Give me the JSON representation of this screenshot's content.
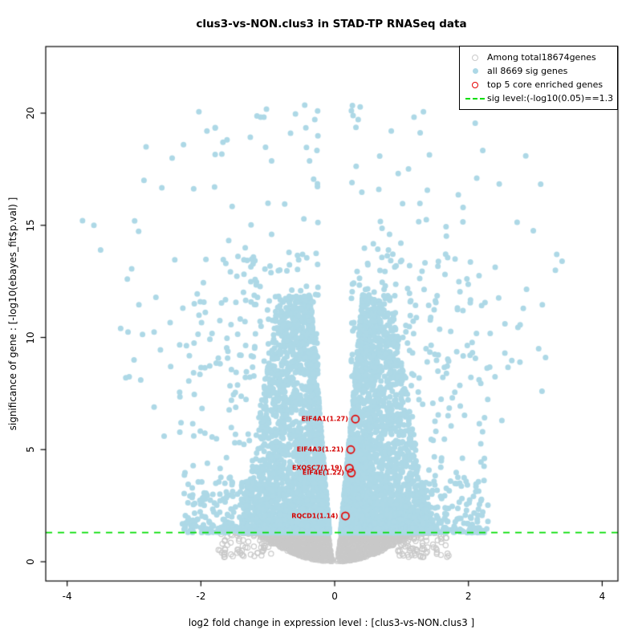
{
  "chart_data": {
    "type": "scatter",
    "subtype": "volcano-plot",
    "title": "clus3-vs-NON.clus3 in STAD-TP RNASeq data",
    "xlabel": "log2 fold change in expression level : [clus3-vs-NON.clus3 ]",
    "ylabel": "significance of gene : [-log10(ebayes_fit$p.val) ]",
    "xlim": [
      -4.32,
      4.235
    ],
    "ylim": [
      -0.859,
      22.97
    ],
    "grid": false,
    "x_ticks": [
      {
        "value": -4,
        "label": "-4"
      },
      {
        "value": -2,
        "label": "-2"
      },
      {
        "value": 0,
        "label": "0"
      },
      {
        "value": 2,
        "label": "2"
      },
      {
        "value": 4,
        "label": "4"
      }
    ],
    "y_ticks": [
      {
        "value": 0,
        "label": "0"
      },
      {
        "value": 5,
        "label": "5"
      },
      {
        "value": 10,
        "label": "10"
      },
      {
        "value": 15,
        "label": "15"
      },
      {
        "value": 20,
        "label": "20"
      }
    ],
    "sig_line": {
      "y": 1.3,
      "style": "dashed",
      "color": "#00dd00"
    },
    "colors": {
      "nonsig": "#c9c9c9",
      "sig": "#add8e6",
      "top_enriched": "#e60000",
      "sig_line": "#00dd00",
      "gene_label_text": "#d40000"
    },
    "legend": {
      "position": "top-right",
      "entries": [
        {
          "marker": "open-circle",
          "color": "#c9c9c9",
          "label": "Among total18674genes"
        },
        {
          "marker": "filled-circle",
          "color": "#add8e6",
          "label": "all 8669 sig genes"
        },
        {
          "marker": "open-circle",
          "color": "#e60000",
          "label": "top 5 core enriched genes"
        },
        {
          "marker": "dashed-line",
          "color": "#00dd00",
          "label": "sig level:(-log10(0.05)==1.3"
        }
      ]
    },
    "counts": {
      "total_genes": 18674,
      "sig_genes": 8669,
      "top_enriched": 5
    },
    "labeled_points": [
      {
        "gene": "EIF4A1",
        "score": 1.27,
        "label": "EIF4A1(1.27)",
        "x": 0.31,
        "y": 6.36
      },
      {
        "gene": "EIF4A3",
        "score": 1.21,
        "label": "EIF4A3(1.21)",
        "x": 0.24,
        "y": 5.0
      },
      {
        "gene": "EXOSC7",
        "score": 1.19,
        "label": "EXOSC7(1.19)",
        "x": 0.22,
        "y": 4.17
      },
      {
        "gene": "EIF4E",
        "score": 1.22,
        "label": "EIF4E(1.22)",
        "x": 0.25,
        "y": 3.96
      },
      {
        "gene": "RQCD1",
        "score": 1.14,
        "label": "RQCD1(1.14)",
        "x": 0.16,
        "y": 2.04
      }
    ],
    "notable_points": [
      [
        -2.03,
        20.06
      ],
      [
        -1.91,
        19.2
      ],
      [
        -2.26,
        18.6
      ],
      [
        -2.82,
        18.5
      ],
      [
        -2.43,
        18.0
      ],
      [
        -1.67,
        18.7
      ],
      [
        -3.77,
        15.21
      ],
      [
        -3.5,
        13.9
      ],
      [
        -3.6,
        15.0
      ],
      [
        -3.1,
        12.6
      ],
      [
        -3.2,
        10.4
      ],
      [
        -2.9,
        8.1
      ],
      [
        -3.0,
        9.0
      ],
      [
        -2.55,
        5.6
      ],
      [
        -2.7,
        6.9
      ],
      [
        0.66,
        16.6
      ],
      [
        1.92,
        15.8
      ],
      [
        1.37,
        15.25
      ],
      [
        0.82,
        14.6
      ],
      [
        2.97,
        14.76
      ],
      [
        3.32,
        13.7
      ],
      [
        3.4,
        13.4
      ],
      [
        3.3,
        13.0
      ],
      [
        2.82,
        11.3
      ],
      [
        1.8,
        13.5
      ],
      [
        1.12,
        13.2
      ],
      [
        3.05,
        9.5
      ],
      [
        2.77,
        8.9
      ],
      [
        3.1,
        7.6
      ],
      [
        2.5,
        6.3
      ]
    ],
    "point_clouds": {
      "seed": 1234,
      "gray_bowl": {
        "n": 4200,
        "x_sigma": 0.46,
        "x_max": 1.55,
        "y_top": 1.28,
        "bowl_halfwidth": 1.15,
        "notch_bottom": 0.035,
        "notch_top": 0.105
      },
      "gray_sparse": {
        "n": 150,
        "x_min": 0.95,
        "x_span": 0.8,
        "y_min": 0.2,
        "y_span": 1.05
      },
      "blue_core": {
        "n_per_side": 2600,
        "y_exp": 2.6,
        "y_span": 10.6,
        "x_exp": 1.6
      },
      "blue_halo": {
        "n_per_side": 430,
        "y_exp": 1.7,
        "y_span": 12.5,
        "x_min": 0.18,
        "x_span": 2.15,
        "x_exp": 2.1
      },
      "blue_high": {
        "n_per_side": 125,
        "y_min": 8.2,
        "y_span": 12.2,
        "y_exp": 1.9,
        "x_min": 0.25,
        "x_span": 2.95,
        "x_exp": 2.0
      },
      "blue_lowtail": {
        "n_per_side": 140,
        "y_span": 2.3,
        "y_exp": 2.2,
        "x_min": 1.3,
        "x_span": 0.95,
        "x_exp": 1.4
      }
    }
  }
}
